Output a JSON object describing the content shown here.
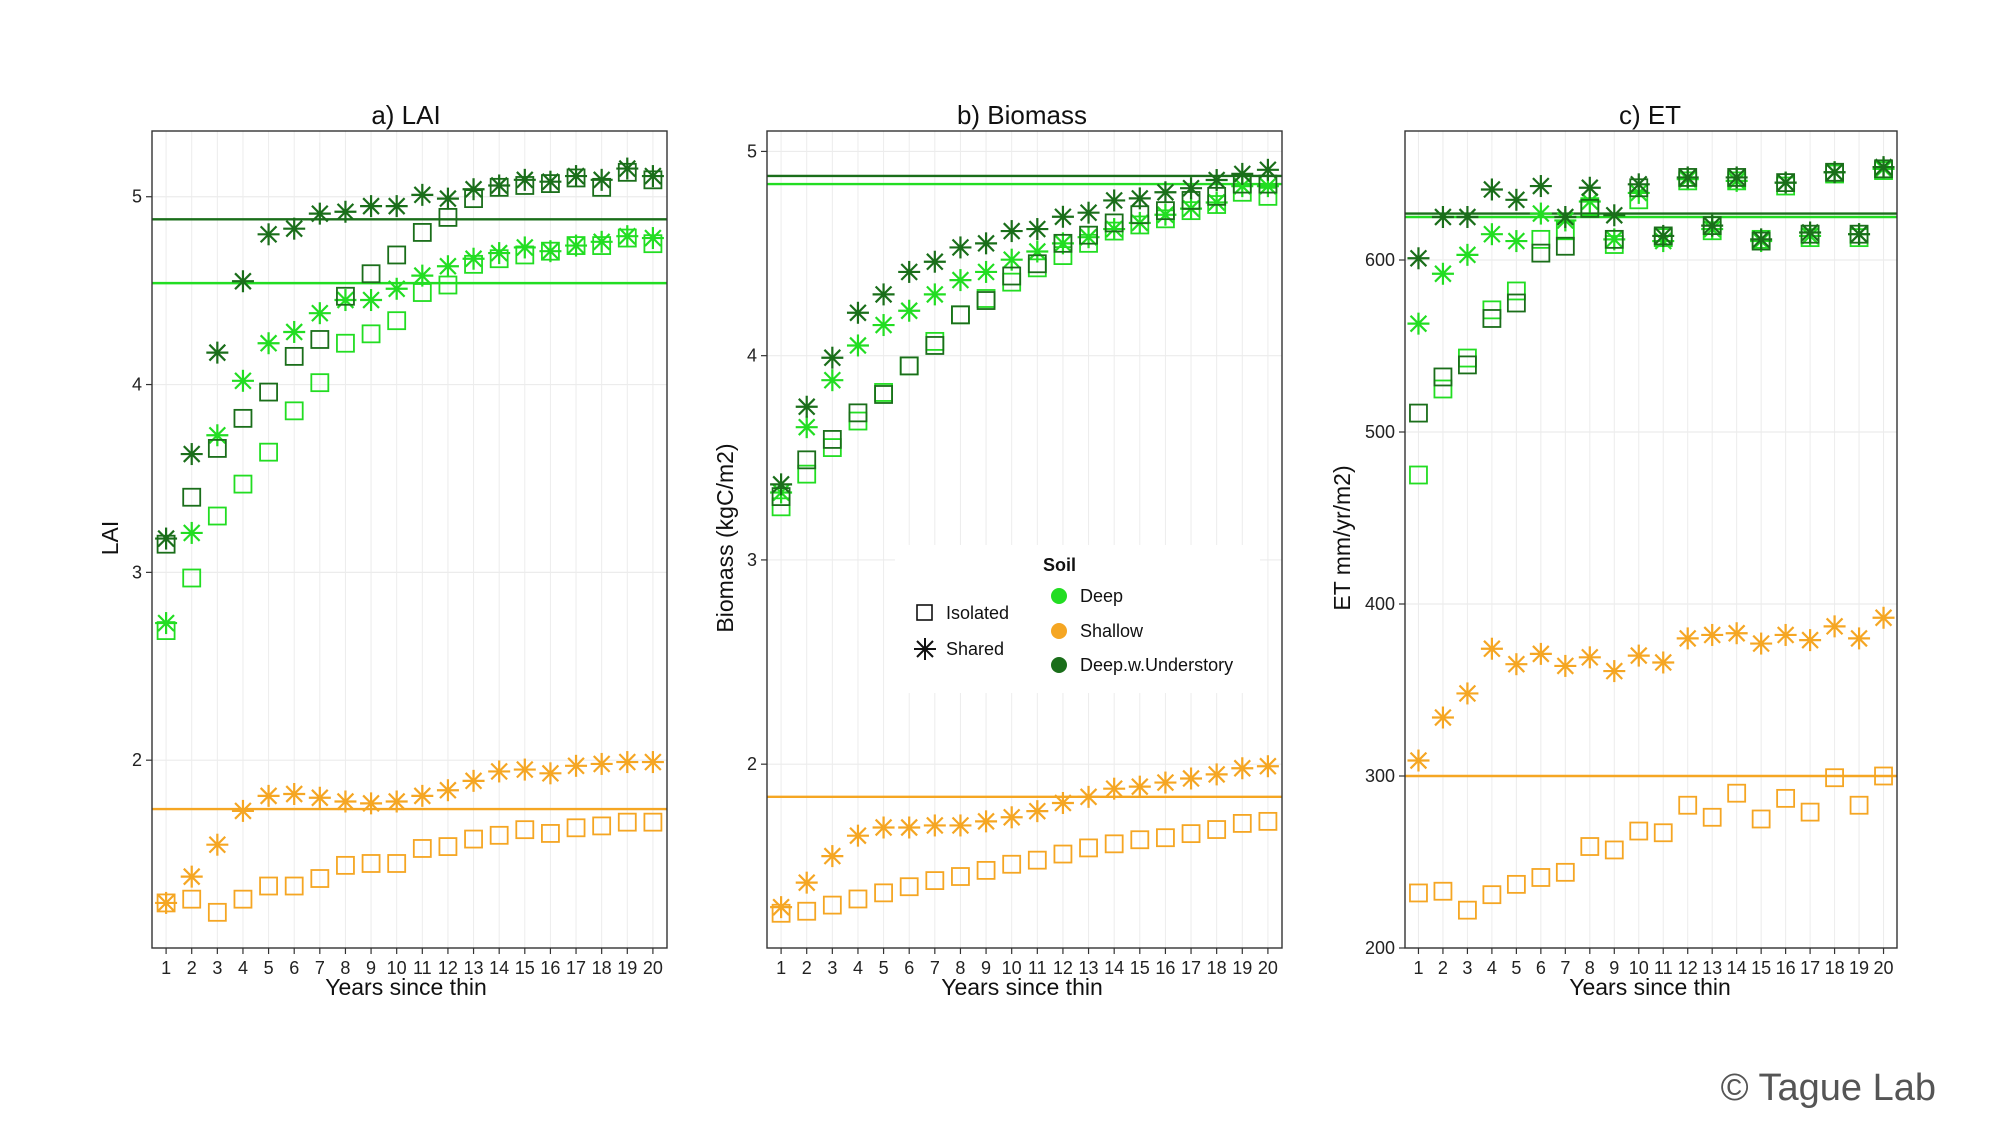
{
  "colors": {
    "deep": "#22dd22",
    "shallow": "#f5a623",
    "understory": "#1a6e1a",
    "grid": "#ececec",
    "frame": "#333333"
  },
  "watermark": "© Tague Lab",
  "legend": {
    "marker_items": [
      {
        "label": "Isolated",
        "symbol": "square"
      },
      {
        "label": "Shared",
        "symbol": "asterisk"
      }
    ],
    "soil_title": "Soil",
    "soil_items": [
      {
        "label": "Deep",
        "color_key": "deep"
      },
      {
        "label": "Shallow",
        "color_key": "shallow"
      },
      {
        "label": "Deep.w.Understory",
        "color_key": "understory"
      }
    ]
  },
  "chart_data": [
    {
      "type": "scatter",
      "title": "a) LAI",
      "xlabel": "Years since thin",
      "ylabel": "LAI",
      "x": [
        1,
        2,
        3,
        4,
        5,
        6,
        7,
        8,
        9,
        10,
        11,
        12,
        13,
        14,
        15,
        16,
        17,
        18,
        19,
        20
      ],
      "xlim": [
        0.45,
        20.55
      ],
      "ylim": [
        1.0,
        5.35
      ],
      "yticks": [
        2,
        3,
        4,
        5
      ],
      "hlines": [
        {
          "soil": "understory",
          "value": 4.88
        },
        {
          "soil": "deep",
          "value": 4.54
        },
        {
          "soil": "shallow",
          "value": 1.74
        }
      ],
      "series": [
        {
          "name": "Deep Isolated",
          "soil": "deep",
          "symbol": "square",
          "values": [
            2.69,
            2.97,
            3.3,
            3.47,
            3.64,
            3.86,
            4.01,
            4.22,
            4.27,
            4.34,
            4.49,
            4.53,
            4.64,
            4.67,
            4.69,
            4.71,
            4.74,
            4.74,
            4.78,
            4.75
          ]
        },
        {
          "name": "Deep Shared",
          "soil": "deep",
          "symbol": "asterisk",
          "values": [
            2.73,
            3.21,
            3.73,
            4.02,
            4.22,
            4.28,
            4.38,
            4.45,
            4.45,
            4.51,
            4.58,
            4.63,
            4.67,
            4.7,
            4.73,
            4.71,
            4.74,
            4.76,
            4.79,
            4.78
          ]
        },
        {
          "name": "Shallow Isolated",
          "soil": "shallow",
          "symbol": "square",
          "values": [
            1.24,
            1.26,
            1.19,
            1.26,
            1.33,
            1.33,
            1.37,
            1.44,
            1.45,
            1.45,
            1.53,
            1.54,
            1.58,
            1.6,
            1.63,
            1.61,
            1.64,
            1.65,
            1.67,
            1.67
          ]
        },
        {
          "name": "Shallow Shared",
          "soil": "shallow",
          "symbol": "asterisk",
          "values": [
            1.24,
            1.38,
            1.55,
            1.73,
            1.81,
            1.82,
            1.8,
            1.78,
            1.77,
            1.78,
            1.81,
            1.84,
            1.89,
            1.94,
            1.95,
            1.93,
            1.97,
            1.98,
            1.99,
            1.99
          ]
        },
        {
          "name": "Deep.w.Understory Isolated",
          "soil": "understory",
          "symbol": "square",
          "values": [
            3.15,
            3.4,
            3.66,
            3.82,
            3.96,
            4.15,
            4.24,
            4.47,
            4.59,
            4.69,
            4.81,
            4.89,
            4.99,
            5.05,
            5.06,
            5.07,
            5.1,
            5.05,
            5.13,
            5.09
          ]
        },
        {
          "name": "Deep.w.Understory Shared",
          "soil": "understory",
          "symbol": "asterisk",
          "values": [
            3.18,
            3.63,
            4.17,
            4.55,
            4.8,
            4.83,
            4.91,
            4.92,
            4.95,
            4.95,
            5.01,
            4.99,
            5.04,
            5.06,
            5.09,
            5.08,
            5.11,
            5.09,
            5.15,
            5.11
          ]
        }
      ]
    },
    {
      "type": "scatter",
      "title": "b) Biomass",
      "xlabel": "Years since thin",
      "ylabel": "Biomass (kgC/m2)",
      "x": [
        1,
        2,
        3,
        4,
        5,
        6,
        7,
        8,
        9,
        10,
        11,
        12,
        13,
        14,
        15,
        16,
        17,
        18,
        19,
        20
      ],
      "xlim": [
        0.45,
        20.55
      ],
      "ylim": [
        1.1,
        5.1
      ],
      "yticks": [
        2,
        3,
        4,
        5
      ],
      "hlines": [
        {
          "soil": "understory",
          "value": 4.88
        },
        {
          "soil": "deep",
          "value": 4.84
        },
        {
          "soil": "shallow",
          "value": 1.84
        }
      ],
      "series": [
        {
          "name": "Deep Isolated",
          "soil": "deep",
          "symbol": "square",
          "values": [
            3.26,
            3.42,
            3.55,
            3.68,
            3.82,
            3.95,
            4.07,
            4.2,
            4.28,
            4.36,
            4.43,
            4.49,
            4.55,
            4.61,
            4.64,
            4.67,
            4.71,
            4.74,
            4.8,
            4.78
          ]
        },
        {
          "name": "Deep Shared",
          "soil": "deep",
          "symbol": "asterisk",
          "values": [
            3.33,
            3.65,
            3.88,
            4.05,
            4.15,
            4.22,
            4.3,
            4.37,
            4.41,
            4.47,
            4.51,
            4.55,
            4.58,
            4.62,
            4.65,
            4.69,
            4.72,
            4.75,
            4.83,
            4.83
          ]
        },
        {
          "name": "Shallow Isolated",
          "soil": "shallow",
          "symbol": "square",
          "values": [
            1.27,
            1.28,
            1.31,
            1.34,
            1.37,
            1.4,
            1.43,
            1.45,
            1.48,
            1.51,
            1.53,
            1.56,
            1.59,
            1.61,
            1.63,
            1.64,
            1.66,
            1.68,
            1.71,
            1.72
          ]
        },
        {
          "name": "Shallow Shared",
          "soil": "shallow",
          "symbol": "asterisk",
          "values": [
            1.3,
            1.42,
            1.55,
            1.65,
            1.69,
            1.69,
            1.7,
            1.7,
            1.72,
            1.74,
            1.77,
            1.81,
            1.84,
            1.88,
            1.89,
            1.91,
            1.93,
            1.95,
            1.98,
            1.99
          ]
        },
        {
          "name": "Deep.w.Understory Isolated",
          "soil": "understory",
          "symbol": "square",
          "values": [
            3.31,
            3.49,
            3.59,
            3.72,
            3.81,
            3.95,
            4.05,
            4.2,
            4.27,
            4.39,
            4.45,
            4.55,
            4.59,
            4.65,
            4.69,
            4.71,
            4.76,
            4.78,
            4.84,
            4.84
          ]
        },
        {
          "name": "Deep.w.Understory Shared",
          "soil": "understory",
          "symbol": "asterisk",
          "values": [
            3.37,
            3.75,
            3.99,
            4.21,
            4.3,
            4.41,
            4.46,
            4.53,
            4.55,
            4.61,
            4.62,
            4.68,
            4.7,
            4.76,
            4.77,
            4.8,
            4.82,
            4.86,
            4.89,
            4.91
          ]
        }
      ]
    },
    {
      "type": "scatter",
      "title": "c) ET",
      "xlabel": "Years since thin",
      "ylabel": "ET mm/yr/m2)",
      "x": [
        1,
        2,
        3,
        4,
        5,
        6,
        7,
        8,
        9,
        10,
        11,
        12,
        13,
        14,
        15,
        16,
        17,
        18,
        19,
        20
      ],
      "xlim": [
        0.45,
        20.55
      ],
      "ylim": [
        200,
        675
      ],
      "yticks": [
        200,
        300,
        400,
        500,
        600
      ],
      "hlines": [
        {
          "soil": "understory",
          "value": 627
        },
        {
          "soil": "deep",
          "value": 625
        },
        {
          "soil": "shallow",
          "value": 300
        }
      ],
      "series": [
        {
          "name": "Deep Isolated",
          "soil": "deep",
          "symbol": "square",
          "values": [
            475,
            525,
            543,
            571,
            582,
            612,
            617,
            631,
            609,
            635,
            613,
            646,
            617,
            646,
            612,
            643,
            613,
            650,
            613,
            652
          ]
        },
        {
          "name": "Deep Shared",
          "soil": "deep",
          "symbol": "asterisk",
          "values": [
            563,
            592,
            603,
            615,
            611,
            627,
            623,
            634,
            612,
            639,
            611,
            647,
            618,
            646,
            611,
            645,
            614,
            651,
            615,
            653
          ]
        },
        {
          "name": "Shallow Isolated",
          "soil": "shallow",
          "symbol": "square",
          "values": [
            232,
            233,
            222,
            231,
            237,
            241,
            244,
            259,
            257,
            268,
            267,
            283,
            276,
            290,
            275,
            287,
            279,
            299,
            283,
            300
          ]
        },
        {
          "name": "Shallow Shared",
          "soil": "shallow",
          "symbol": "asterisk",
          "values": [
            309,
            334,
            348,
            374,
            365,
            371,
            364,
            369,
            361,
            370,
            366,
            380,
            382,
            383,
            377,
            382,
            379,
            387,
            380,
            392
          ]
        },
        {
          "name": "Deep.w.Understory Isolated",
          "soil": "understory",
          "symbol": "square",
          "values": [
            511,
            532,
            539,
            566,
            575,
            604,
            608,
            630,
            612,
            642,
            614,
            648,
            620,
            648,
            611,
            645,
            615,
            651,
            615,
            653
          ]
        },
        {
          "name": "Deep.w.Understory Shared",
          "soil": "understory",
          "symbol": "asterisk",
          "values": [
            601,
            625,
            625,
            641,
            635,
            643,
            625,
            642,
            626,
            644,
            614,
            648,
            620,
            648,
            612,
            645,
            616,
            651,
            615,
            654
          ]
        }
      ]
    }
  ]
}
